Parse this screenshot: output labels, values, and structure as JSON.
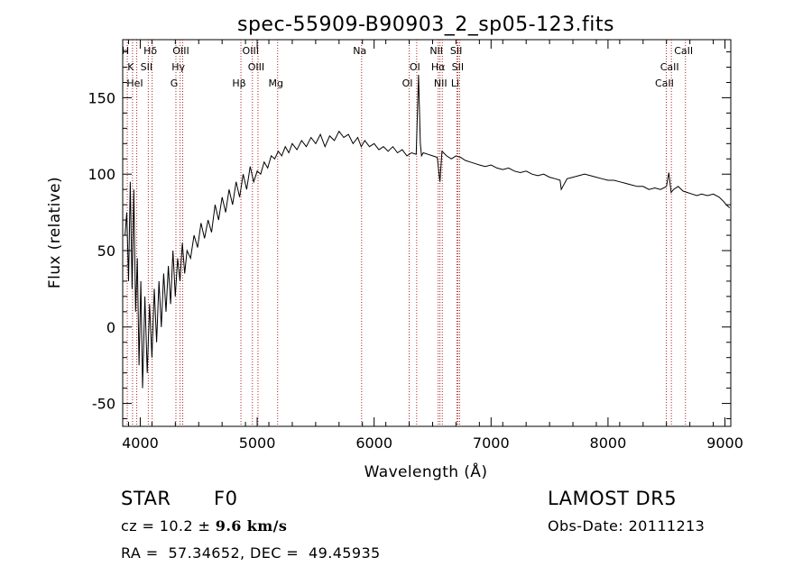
{
  "chart_data": {
    "type": "line",
    "title": "spec-55909-B90903_2_sp05-123.fits",
    "xlabel": "Wavelength (Å)",
    "ylabel": "Flux (relative)",
    "xlim": [
      3850,
      9050
    ],
    "ylim": [
      -65,
      188
    ],
    "xticks": [
      4000,
      5000,
      6000,
      7000,
      8000,
      9000
    ],
    "yticks": [
      -50,
      0,
      50,
      100,
      150
    ],
    "grid": false,
    "series": [
      {
        "color": "#000000",
        "x": [
          3870,
          3885,
          3900,
          3915,
          3930,
          3945,
          3960,
          3975,
          3990,
          4005,
          4020,
          4040,
          4060,
          4080,
          4100,
          4120,
          4140,
          4160,
          4180,
          4200,
          4220,
          4240,
          4260,
          4280,
          4300,
          4320,
          4340,
          4360,
          4380,
          4400,
          4430,
          4460,
          4490,
          4520,
          4550,
          4580,
          4610,
          4640,
          4670,
          4700,
          4730,
          4760,
          4790,
          4820,
          4850,
          4880,
          4910,
          4940,
          4970,
          5000,
          5030,
          5060,
          5090,
          5120,
          5150,
          5180,
          5210,
          5240,
          5270,
          5300,
          5340,
          5380,
          5420,
          5460,
          5500,
          5540,
          5580,
          5620,
          5660,
          5700,
          5740,
          5780,
          5820,
          5860,
          5890,
          5920,
          5960,
          6000,
          6040,
          6080,
          6120,
          6160,
          6200,
          6240,
          6280,
          6320,
          6360,
          6380,
          6395,
          6405,
          6420,
          6460,
          6500,
          6540,
          6563,
          6580,
          6620,
          6660,
          6700,
          6740,
          6780,
          6820,
          6860,
          6900,
          6950,
          7000,
          7050,
          7100,
          7150,
          7200,
          7250,
          7300,
          7350,
          7400,
          7450,
          7500,
          7550,
          7590,
          7600,
          7650,
          7700,
          7750,
          7800,
          7850,
          7900,
          7950,
          8000,
          8050,
          8100,
          8150,
          8200,
          8250,
          8300,
          8350,
          8400,
          8450,
          8500,
          8520,
          8540,
          8560,
          8600,
          8640,
          8680,
          8720,
          8760,
          8800,
          8850,
          8900,
          8950,
          8990,
          9010,
          9040
        ],
        "y": [
          60,
          75,
          30,
          95,
          25,
          90,
          10,
          45,
          -25,
          30,
          -40,
          20,
          -30,
          15,
          -20,
          25,
          -10,
          30,
          0,
          35,
          10,
          40,
          15,
          50,
          20,
          45,
          30,
          55,
          35,
          50,
          45,
          60,
          52,
          68,
          58,
          70,
          62,
          80,
          70,
          85,
          75,
          90,
          80,
          95,
          85,
          100,
          90,
          105,
          95,
          102,
          100,
          108,
          104,
          112,
          110,
          115,
          112,
          118,
          114,
          120,
          116,
          122,
          118,
          124,
          120,
          126,
          118,
          125,
          122,
          128,
          124,
          126,
          120,
          124,
          118,
          122,
          118,
          120,
          116,
          118,
          115,
          118,
          114,
          116,
          112,
          114,
          113,
          165,
          120,
          112,
          114,
          113,
          112,
          111,
          95,
          115,
          112,
          110,
          112,
          111,
          109,
          108,
          107,
          106,
          105,
          106,
          104,
          103,
          104,
          102,
          101,
          102,
          100,
          99,
          100,
          98,
          97,
          96,
          90,
          97,
          98,
          99,
          100,
          99,
          98,
          97,
          96,
          96,
          95,
          94,
          93,
          92,
          92,
          90,
          91,
          90,
          92,
          101,
          88,
          90,
          92,
          89,
          88,
          87,
          86,
          87,
          86,
          87,
          85,
          82,
          80,
          78
        ]
      }
    ],
    "lines": [
      {
        "label": "H",
        "x": 3889
      },
      {
        "label": "K",
        "x": 3934
      },
      {
        "label": "HeI",
        "x": 3970
      },
      {
        "label": "Hδ",
        "x": 4102
      },
      {
        "label": "SII",
        "x": 4069
      },
      {
        "label": "G",
        "x": 4305
      },
      {
        "label": "OIII",
        "x": 4363
      },
      {
        "label": "Hγ",
        "x": 4341
      },
      {
        "label": "Hβ",
        "x": 4861
      },
      {
        "label": "OIII",
        "x": 4959
      },
      {
        "label": "OIII",
        "x": 5007
      },
      {
        "label": "Mg",
        "x": 5175
      },
      {
        "label": "Na",
        "x": 5893
      },
      {
        "label": "OI",
        "x": 6364
      },
      {
        "label": "OI",
        "x": 6300
      },
      {
        "label": "NII",
        "x": 6548
      },
      {
        "label": "Hα",
        "x": 6563
      },
      {
        "label": "NII",
        "x": 6583
      },
      {
        "label": "SII",
        "x": 6717
      },
      {
        "label": "SII",
        "x": 6731
      },
      {
        "label": "Li",
        "x": 6708
      },
      {
        "label": "CaII",
        "x": 8662
      },
      {
        "label": "CaII",
        "x": 8542
      },
      {
        "label": "CaII",
        "x": 8498
      }
    ]
  },
  "footer": {
    "object_class": "STAR",
    "subclass": "F0",
    "survey": "LAMOST DR5",
    "cz_prefix": "cz = 10.2 ± ",
    "cz_err": "9.6 km/s",
    "obs_date": "Obs-Date: 20111213",
    "coords": "RA =  57.34652, DEC =  49.45935"
  },
  "colors": {
    "axis": "#000000",
    "spectrum": "#000000",
    "line_marker": "#b22222"
  }
}
